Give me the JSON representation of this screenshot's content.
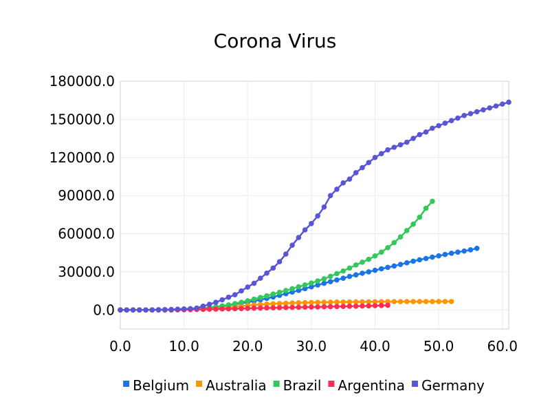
{
  "chart_data": {
    "type": "line",
    "title": "Corona Virus",
    "xlabel": "",
    "ylabel": "",
    "xlim": [
      0,
      61
    ],
    "ylim": [
      -15000,
      180000
    ],
    "x_ticks": [
      "0.0",
      "10.0",
      "20.0",
      "30.0",
      "40.0",
      "50.0",
      "60.0"
    ],
    "y_ticks": [
      "0.0",
      "30000.0",
      "60000.0",
      "90000.0",
      "120000.0",
      "150000.0",
      "180000.0"
    ],
    "x_tick_values": [
      0,
      10,
      20,
      30,
      40,
      50,
      60
    ],
    "y_tick_values": [
      0,
      30000,
      60000,
      90000,
      120000,
      150000,
      180000
    ],
    "grid": true,
    "legend_position": "bottom",
    "series": [
      {
        "name": "Belgium",
        "color": "#1a73e8",
        "x": [
          0,
          1,
          2,
          3,
          4,
          5,
          6,
          7,
          8,
          9,
          10,
          11,
          12,
          13,
          14,
          15,
          16,
          17,
          18,
          19,
          20,
          21,
          22,
          23,
          24,
          25,
          26,
          27,
          28,
          29,
          30,
          31,
          32,
          33,
          34,
          35,
          36,
          37,
          38,
          39,
          40,
          41,
          42,
          43,
          44,
          45,
          46,
          47,
          48,
          49,
          50,
          51,
          52,
          53,
          54,
          55,
          56
        ],
        "y": [
          0,
          0,
          0,
          0,
          0,
          0,
          0,
          0,
          100,
          200,
          400,
          700,
          1000,
          1400,
          1900,
          2500,
          3100,
          3800,
          4500,
          5300,
          6100,
          7000,
          8000,
          9100,
          10200,
          11500,
          12800,
          14100,
          15400,
          16800,
          18200,
          19600,
          21000,
          22300,
          23600,
          25000,
          26400,
          27600,
          28900,
          30000,
          31200,
          32400,
          33500,
          34600,
          35800,
          37100,
          38400,
          39500,
          40500,
          41600,
          42600,
          43700,
          44600,
          45500,
          46400,
          47300,
          48500
        ]
      },
      {
        "name": "Australia",
        "color": "#ff9500",
        "x": [
          0,
          1,
          2,
          3,
          4,
          5,
          6,
          7,
          8,
          9,
          10,
          11,
          12,
          13,
          14,
          15,
          16,
          17,
          18,
          19,
          20,
          21,
          22,
          23,
          24,
          25,
          26,
          27,
          28,
          29,
          30,
          31,
          32,
          33,
          34,
          35,
          36,
          37,
          38,
          39,
          40,
          41,
          42,
          43,
          44,
          45,
          46,
          47,
          48,
          49,
          50,
          51,
          52
        ],
        "y": [
          0,
          0,
          0,
          0,
          0,
          0,
          0,
          0,
          0,
          100,
          200,
          300,
          500,
          700,
          1000,
          1300,
          1700,
          2100,
          2600,
          3100,
          3600,
          4000,
          4300,
          4600,
          4900,
          5100,
          5300,
          5500,
          5700,
          5800,
          5900,
          6000,
          6100,
          6150,
          6200,
          6250,
          6300,
          6350,
          6400,
          6450,
          6500,
          6520,
          6540,
          6560,
          6580,
          6600,
          6610,
          6620,
          6630,
          6640,
          6650,
          6660,
          6670
        ]
      },
      {
        "name": "Brazil",
        "color": "#34c759",
        "x": [
          0,
          1,
          2,
          3,
          4,
          5,
          6,
          7,
          8,
          9,
          10,
          11,
          12,
          13,
          14,
          15,
          16,
          17,
          18,
          19,
          20,
          21,
          22,
          23,
          24,
          25,
          26,
          27,
          28,
          29,
          30,
          31,
          32,
          33,
          34,
          35,
          36,
          37,
          38,
          39,
          40,
          41,
          42,
          43,
          44,
          45,
          46,
          47,
          48,
          49
        ],
        "y": [
          0,
          0,
          0,
          0,
          0,
          0,
          0,
          0,
          100,
          200,
          400,
          700,
          1000,
          1400,
          1900,
          2500,
          3200,
          4000,
          5000,
          6000,
          7200,
          8500,
          9800,
          11100,
          12500,
          13900,
          15300,
          16700,
          18200,
          19700,
          21200,
          22800,
          24500,
          26500,
          28600,
          30700,
          33000,
          35400,
          37600,
          39800,
          42500,
          45500,
          49000,
          53000,
          57500,
          62500,
          67500,
          73000,
          80000,
          85500
        ]
      },
      {
        "name": "Argentina",
        "color": "#ff2d55",
        "x": [
          0,
          1,
          2,
          3,
          4,
          5,
          6,
          7,
          8,
          9,
          10,
          11,
          12,
          13,
          14,
          15,
          16,
          17,
          18,
          19,
          20,
          21,
          22,
          23,
          24,
          25,
          26,
          27,
          28,
          29,
          30,
          31,
          32,
          33,
          34,
          35,
          36,
          37,
          38,
          39,
          40,
          41,
          42
        ],
        "y": [
          0,
          0,
          0,
          0,
          0,
          0,
          0,
          0,
          0,
          100,
          200,
          300,
          400,
          500,
          600,
          700,
          800,
          900,
          1000,
          1100,
          1300,
          1400,
          1500,
          1600,
          1700,
          1800,
          1900,
          2000,
          2100,
          2200,
          2300,
          2400,
          2500,
          2600,
          2700,
          2800,
          2900,
          3000,
          3100,
          3200,
          3400,
          3500,
          3700
        ]
      },
      {
        "name": "Germany",
        "color": "#5856d6",
        "x": [
          0,
          1,
          2,
          3,
          4,
          5,
          6,
          7,
          8,
          9,
          10,
          11,
          12,
          13,
          14,
          15,
          16,
          17,
          18,
          19,
          20,
          21,
          22,
          23,
          24,
          25,
          26,
          27,
          28,
          29,
          30,
          31,
          32,
          33,
          34,
          35,
          36,
          37,
          38,
          39,
          40,
          41,
          42,
          43,
          44,
          45,
          46,
          47,
          48,
          49,
          50,
          51,
          52,
          53,
          54,
          55,
          56,
          57,
          58,
          59,
          60,
          61
        ],
        "y": [
          0,
          0,
          0,
          0,
          0,
          100,
          200,
          300,
          400,
          600,
          800,
          1000,
          1500,
          3000,
          4500,
          6000,
          8000,
          10000,
          12000,
          15000,
          18000,
          21000,
          25000,
          29000,
          33000,
          38000,
          44000,
          51000,
          57000,
          63000,
          68000,
          74000,
          81000,
          90000,
          95000,
          100000,
          103000,
          108000,
          112000,
          116000,
          120000,
          123000,
          126000,
          128000,
          130000,
          132000,
          135000,
          138000,
          140000,
          143000,
          145000,
          147000,
          149000,
          151000,
          153000,
          154500,
          156000,
          157500,
          159000,
          160500,
          162000,
          163500
        ]
      }
    ]
  }
}
